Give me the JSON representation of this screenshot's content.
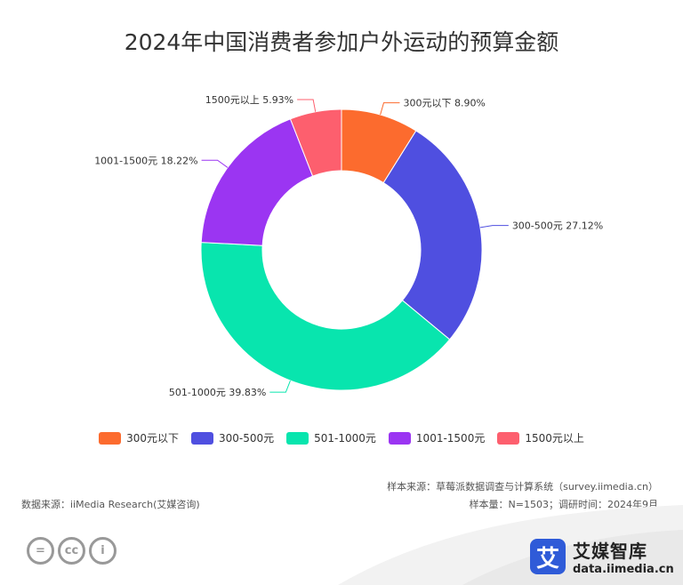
{
  "title": "2024年中国消费者参加户外运动的预算金额",
  "chart_data": {
    "type": "pie",
    "donut": true,
    "title": "2024年中国消费者参加户外运动的预算金额",
    "categories": [
      "300元以下",
      "300-500元",
      "501-1000元",
      "1001-1500元",
      "1500元以上"
    ],
    "values": [
      8.9,
      27.12,
      39.83,
      18.22,
      5.93
    ],
    "unit": "%",
    "colors": [
      "#fc6b2e",
      "#4f4fe0",
      "#08e5ae",
      "#9b35f2",
      "#fd5f6e"
    ],
    "data_labels": [
      "300元以下 8.90%",
      "300-500元 27.12%",
      "501-1000元 39.83%",
      "1001-1500元 18.22%",
      "1500元以上 5.93%"
    ],
    "legend_position": "bottom"
  },
  "legend": [
    {
      "label": "300元以下",
      "color": "#fc6b2e"
    },
    {
      "label": "300-500元",
      "color": "#4f4fe0"
    },
    {
      "label": "501-1000元",
      "color": "#08e5ae"
    },
    {
      "label": "1001-1500元",
      "color": "#9b35f2"
    },
    {
      "label": "1500元以上",
      "color": "#fd5f6e"
    }
  ],
  "footer": {
    "sample_source": "样本来源：草莓派数据调查与计算系统（survey.iimedia.cn）",
    "sample_info": "样本量：N=1503；调研时间：2024年9月",
    "data_source": "数据来源：iiMedia Research(艾媒咨询)"
  },
  "brand": {
    "logo_char": "艾",
    "name": "艾媒智库",
    "url": "data.iimedia.cn"
  },
  "license_icons": [
    "equals-icon",
    "cc-icon",
    "person-icon"
  ],
  "license_glyphs": [
    "=",
    "cc",
    "i"
  ]
}
